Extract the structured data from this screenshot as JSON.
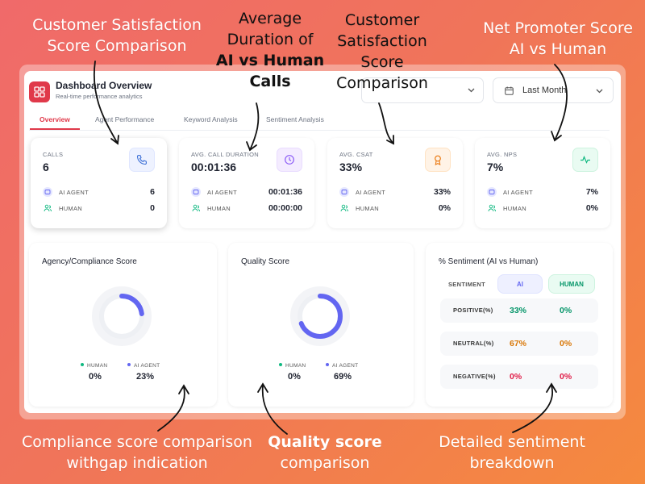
{
  "callouts": {
    "top1": [
      "Customer Satisfaction",
      "Score Comparison"
    ],
    "top2": [
      "Average",
      "Duration of",
      "AI vs Human",
      "Calls"
    ],
    "top3": [
      "Customer",
      "Satisfaction",
      "Score",
      "Comparison"
    ],
    "top4": [
      "Net Promoter Score",
      "AI vs Human"
    ],
    "bottom1": [
      "Compliance score comparison",
      "withgap indication"
    ],
    "bottom2": [
      "Quality score",
      "comparison"
    ],
    "bottom3": [
      "Detailed sentiment",
      "breakdown"
    ]
  },
  "header": {
    "title": "Dashboard Overview",
    "subtitle": "Real-time performance analytics",
    "dropdown2": "Last Month"
  },
  "tabs": [
    "Overview",
    "Agent Performance",
    "Keyword Analysis",
    "Sentiment Analysis"
  ],
  "cards": {
    "calls": {
      "label": "CALLS",
      "value": "6",
      "ai_label": "AI AGENT",
      "ai_value": "6",
      "human_label": "HUMAN",
      "human_value": "0"
    },
    "duration": {
      "label": "AVG. CALL DURATION",
      "value": "00:01:36",
      "ai_label": "AI AGENT",
      "ai_value": "00:01:36",
      "human_label": "HUMAN",
      "human_value": "00:00:00"
    },
    "csat": {
      "label": "AVG. CSAT",
      "value": "33%",
      "ai_label": "AI AGENT",
      "ai_value": "33%",
      "human_label": "HUMAN",
      "human_value": "0%"
    },
    "nps": {
      "label": "AVG. NPS",
      "value": "7%",
      "ai_label": "AI AGENT",
      "ai_value": "7%",
      "human_label": "HUMAN",
      "human_value": "0%"
    }
  },
  "compliance": {
    "title": "Agency/Compliance Score",
    "human_label": "HUMAN",
    "human_value": "0%",
    "ai_label": "AI AGENT",
    "ai_value": "23%",
    "ai_fraction": 0.23
  },
  "quality": {
    "title": "Quality Score",
    "human_label": "HUMAN",
    "human_value": "0%",
    "ai_label": "AI AGENT",
    "ai_value": "69%",
    "ai_fraction": 0.69
  },
  "sentiment": {
    "title": "% Sentiment (AI vs Human)",
    "col_label": "SENTIMENT",
    "col_ai": "AI",
    "col_human": "HUMAN",
    "rows": [
      {
        "label": "POSITIVE(%)",
        "ai": "33%",
        "human": "0%"
      },
      {
        "label": "NEUTRAL(%)",
        "ai": "67%",
        "human": "0%"
      },
      {
        "label": "NEGATIVE(%)",
        "ai": "0%",
        "human": "0%"
      }
    ]
  },
  "colors": {
    "brand": "#e0394a",
    "ai": "#6366f1",
    "human": "#10b981",
    "positive": "#059669",
    "neutral": "#d97706",
    "negative": "#e11d48"
  }
}
